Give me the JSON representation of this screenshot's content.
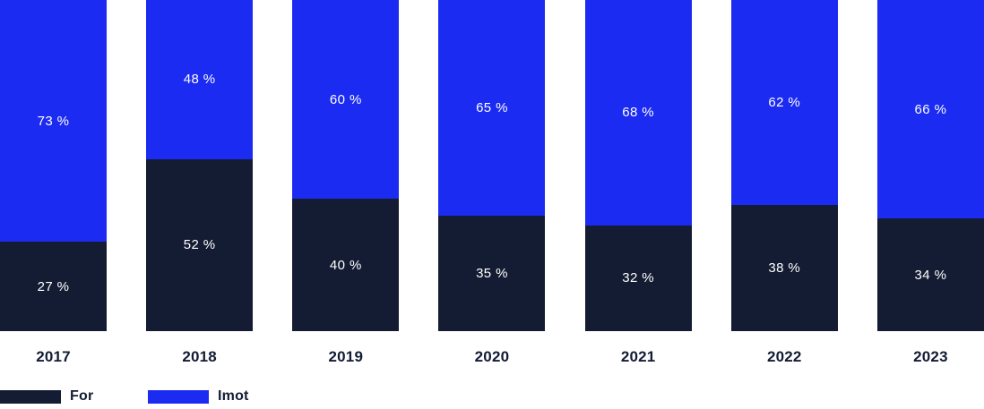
{
  "chart_data": {
    "type": "bar",
    "subtype": "stacked-100-percent",
    "title": "",
    "xlabel": "",
    "ylabel": "",
    "ylim": [
      0,
      100
    ],
    "grid": false,
    "legend_position": "bottom-left",
    "categories": [
      "2017",
      "2018",
      "2019",
      "2020",
      "2021",
      "2022",
      "2023"
    ],
    "series": [
      {
        "name": "For",
        "position": "bottom",
        "color": "#131c33",
        "values": [
          27,
          52,
          40,
          35,
          32,
          38,
          34
        ]
      },
      {
        "name": "Imot",
        "position": "top",
        "color": "#1b2bf2",
        "values": [
          73,
          48,
          60,
          65,
          68,
          62,
          66
        ]
      }
    ],
    "value_label_format": "{v} %",
    "value_labels": {
      "Imot": [
        "73 %",
        "48 %",
        "60 %",
        "65 %",
        "68 %",
        "62 %",
        "66 %"
      ],
      "For": [
        "27 %",
        "52 %",
        "40 %",
        "35 %",
        "32 %",
        "38 %",
        "34 %"
      ]
    }
  },
  "legend": {
    "items": [
      {
        "label": "For",
        "color": "#131c33"
      },
      {
        "label": "Imot",
        "color": "#1b2bf2"
      }
    ]
  },
  "colors": {
    "background": "#ffffff",
    "bar_value_text": "#ffffff",
    "axis_label_text": "#131c33",
    "series_for": "#131c33",
    "series_imot": "#1b2bf2"
  }
}
